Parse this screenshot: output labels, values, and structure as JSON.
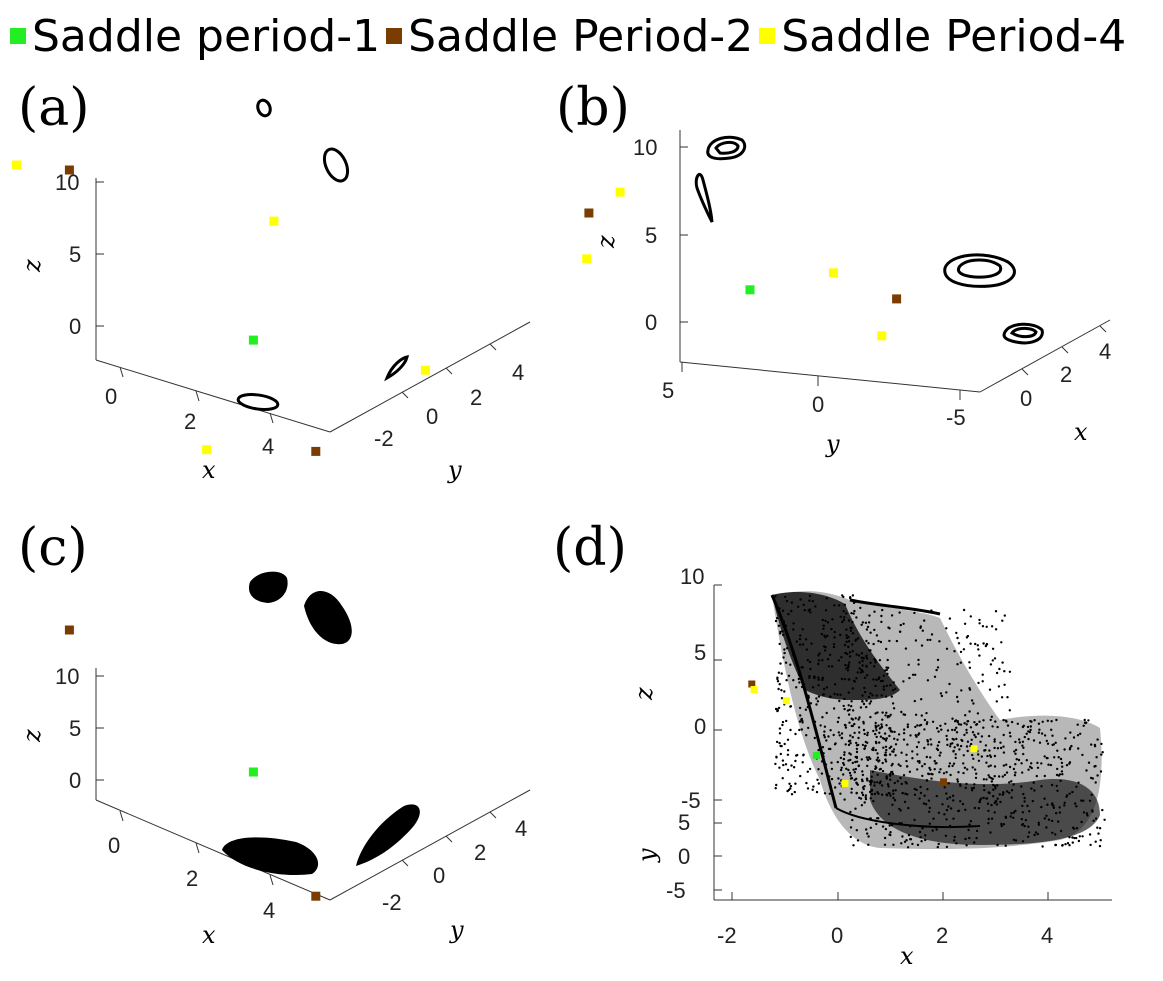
{
  "legend": [
    {
      "label": "Saddle period-1",
      "color": "#22ee22",
      "icon": "square"
    },
    {
      "label": "Saddle Period-2",
      "color": "#7a3c00",
      "icon": "square"
    },
    {
      "label": "Saddle Period-4",
      "color": "#ffff00",
      "icon": "square"
    }
  ],
  "colors": {
    "orbit": "#000000"
  },
  "chart_data": [
    {
      "type": "scatter",
      "panel": "(a)",
      "xlabel": "x",
      "ylabel": "y",
      "zlabel": "z",
      "x_ticks": [
        "0",
        "2",
        "4"
      ],
      "y_ticks": [
        "-2",
        "0",
        "2",
        "4"
      ],
      "z_ticks": [
        "10",
        "5",
        "0"
      ],
      "grid": false,
      "series": [
        {
          "name": "Saddle period-1",
          "points": [
            [
              2.6,
              0.2,
              4.2
            ]
          ]
        },
        {
          "name": "Saddle Period-2",
          "points": [
            [
              -0.8,
              0.6,
              11.5
            ],
            [
              4.7,
              -1.6,
              1.2
            ]
          ]
        },
        {
          "name": "Saddle Period-4",
          "points": [
            [
              -1.2,
              -0.3,
              12.5
            ],
            [
              2.1,
              1.7,
              10.0
            ],
            [
              3.5,
              -2.8,
              1.4
            ],
            [
              4.2,
              2.6,
              1.0
            ]
          ]
        }
      ]
    },
    {
      "type": "scatter",
      "panel": "(b)",
      "xlabel": "x",
      "ylabel": "y",
      "zlabel": "z",
      "x_ticks": [
        "0",
        "2",
        "4"
      ],
      "y_ticks": [
        "5",
        "0",
        "-5"
      ],
      "z_ticks": [
        "10",
        "5",
        "0"
      ],
      "grid": false,
      "series": [
        {
          "name": "Saddle period-1",
          "points": [
            [
              2.0,
              0.0,
              3.1
            ]
          ]
        },
        {
          "name": "Saddle Period-2",
          "points": [
            [
              0.1,
              4.3,
              9.2
            ],
            [
              3.8,
              -3.8,
              1.0
            ]
          ]
        },
        {
          "name": "Saddle Period-4",
          "points": [
            [
              0.3,
              3.2,
              10.1
            ],
            [
              0.1,
              4.4,
              6.6
            ],
            [
              2.5,
              -3.0,
              3.3
            ],
            [
              3.0,
              -4.4,
              -0.8
            ]
          ]
        }
      ]
    },
    {
      "type": "scatter",
      "panel": "(c)",
      "xlabel": "x",
      "ylabel": "y",
      "zlabel": "z",
      "x_ticks": [
        "0",
        "2",
        "4"
      ],
      "y_ticks": [
        "-2",
        "0",
        "2",
        "4"
      ],
      "z_ticks": [
        "10",
        "5",
        "0"
      ],
      "grid": false,
      "series": [
        {
          "name": "Saddle period-1",
          "points": [
            [
              2.6,
              0.2,
              6.6
            ]
          ]
        },
        {
          "name": "Saddle Period-2",
          "points": [
            [
              -0.8,
              0.6,
              14.0
            ],
            [
              4.7,
              -1.6,
              1.2
            ]
          ]
        }
      ]
    },
    {
      "type": "scatter",
      "panel": "(d)",
      "xlabel": "x",
      "ylabel": "y",
      "zlabel": "z",
      "x_ticks": [
        "-2",
        "0",
        "2",
        "4"
      ],
      "y_ticks": [
        "5",
        "0",
        "-5"
      ],
      "z_ticks": [
        "10",
        "5",
        "0",
        "-5"
      ],
      "grid": false,
      "series": [
        {
          "name": "Saddle period-1",
          "points": [
            [
              0.8,
              0.0,
              0.3
            ]
          ]
        },
        {
          "name": "Saddle Period-2",
          "points": [
            [
              -0.9,
              4.0,
              8.0
            ],
            [
              3.8,
              -4.0,
              -4.5
            ]
          ]
        },
        {
          "name": "Saddle Period-4",
          "points": [
            [
              -0.9,
              4.2,
              7.8
            ],
            [
              0.2,
              1.0,
              4.6
            ],
            [
              4.3,
              -3.0,
              -1.6
            ],
            [
              2.0,
              -4.5,
              -5.0
            ]
          ]
        }
      ]
    }
  ]
}
